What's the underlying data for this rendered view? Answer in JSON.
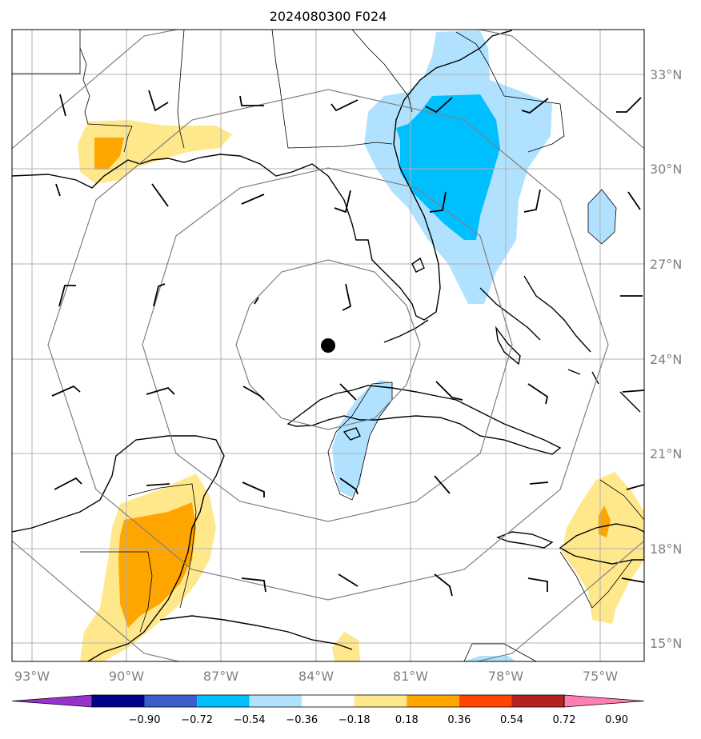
{
  "title": "2024080300 F024",
  "map": {
    "lon_labels": [
      "93°W",
      "90°W",
      "87°W",
      "84°W",
      "81°W",
      "78°W",
      "75°W"
    ],
    "lat_labels": [
      "33°N",
      "30°N",
      "27°N",
      "24°N",
      "21°N",
      "18°N",
      "15°N"
    ],
    "center_marker": {
      "lon": -83.6,
      "lat": 24.4
    },
    "range_rings": 5
  },
  "colorbar": {
    "labels": [
      "−0.90",
      "−0.72",
      "−0.54",
      "−0.36",
      "−0.18",
      "0.18",
      "0.36",
      "0.54",
      "0.72",
      "0.90"
    ],
    "colors": [
      "#9932cc",
      "#00008b",
      "#3a5fcd",
      "#00bfff",
      "#b0e2ff",
      "#ffffff",
      "#ffe88c",
      "#ffa500",
      "#ff4500",
      "#b22222",
      "#ff7fb0"
    ]
  },
  "colors": {
    "neg_light": "#b0e2ff",
    "neg_mid": "#00bfff",
    "pos_light": "#ffe88c",
    "pos_mid": "#ffa500",
    "grid": "#b0b0b0",
    "rings": "#808080"
  }
}
